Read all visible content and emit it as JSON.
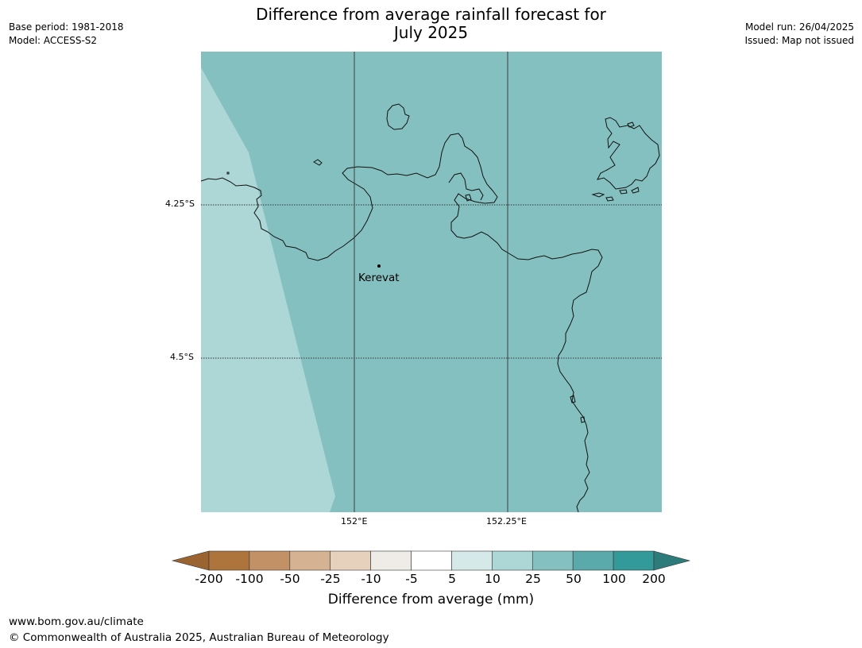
{
  "header": {
    "title_line1": "Difference from average rainfall forecast for",
    "title_line2": "July 2025",
    "base_period": "Base period: 1981-2018",
    "model": "Model: ACCESS-S2",
    "model_run": "Model run: 26/04/2025",
    "issued": "Issued: Map not issued"
  },
  "map": {
    "lat_labels": [
      "4.25°S",
      "4.5°S"
    ],
    "lon_labels": [
      "152°E",
      "152.25°E"
    ],
    "place_label": "Kerevat",
    "colors": {
      "band_10_25": "#add6d6",
      "band_25_50": "#85c0c0",
      "coastline": "#111111",
      "graticule": "#333333"
    }
  },
  "colorbar": {
    "title": "Difference from average (mm)",
    "tick_labels": [
      "-200",
      "-100",
      "-50",
      "-25",
      "-10",
      "-5",
      "5",
      "10",
      "25",
      "50",
      "100",
      "200"
    ],
    "colors": [
      "#9a6330",
      "#ad743b",
      "#c29166",
      "#d4b292",
      "#e6d1bd",
      "#efebe7",
      "#ffffff",
      "#d6e9e9",
      "#add6d6",
      "#85c0c0",
      "#5baaab",
      "#339999",
      "#2d7b7b"
    ]
  },
  "footer": {
    "url": "www.bom.gov.au/climate",
    "copyright": "© Commonwealth of Australia 2025, Australian Bureau of Meteorology"
  }
}
